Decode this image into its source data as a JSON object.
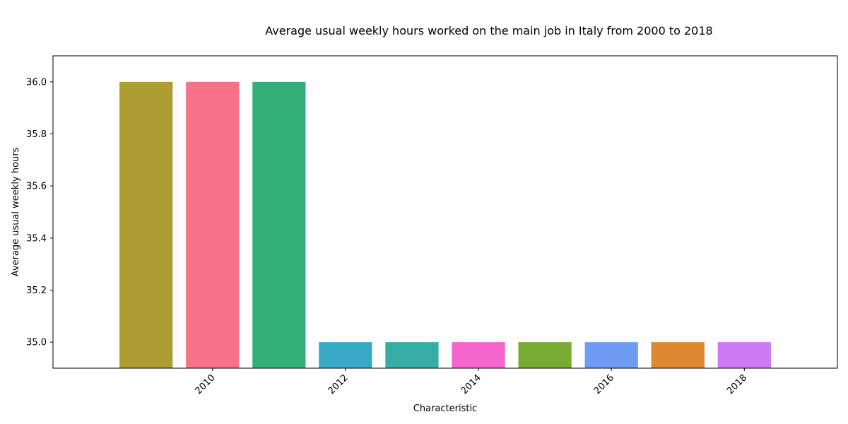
{
  "chart_data": {
    "type": "bar",
    "title": "Average usual weekly hours worked on the main job in Italy from 2000 to 2018",
    "xlabel": "Characteristic",
    "ylabel": "Average usual weekly hours",
    "categories": [
      "2009",
      "2010",
      "2011",
      "2012",
      "2013",
      "2014",
      "2015",
      "2016",
      "2017",
      "2018"
    ],
    "values": [
      36,
      36,
      36,
      35,
      35,
      35,
      35,
      35,
      35,
      35
    ],
    "colors": [
      "#ae9d31",
      "#f77189",
      "#33b07a",
      "#38a9c5",
      "#36ada4",
      "#f565cc",
      "#77ab31",
      "#6e9bf4",
      "#dc8932",
      "#cc7af4"
    ],
    "x_tick_labels": [
      "2010",
      "2012",
      "2014",
      "2016",
      "2018"
    ],
    "y_ticks": [
      35.0,
      35.2,
      35.4,
      35.6,
      35.8,
      36.0
    ],
    "y_tick_labels": [
      "35.0",
      "35.2",
      "35.4",
      "35.6",
      "35.8",
      "36.0"
    ],
    "ylim": [
      34.9,
      36.1
    ],
    "x_range": [
      2007.6,
      2019.4
    ],
    "grid": false,
    "legend": "none"
  }
}
